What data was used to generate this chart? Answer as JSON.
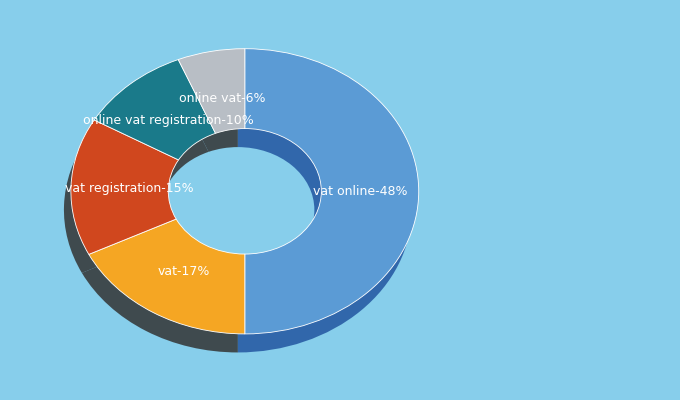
{
  "labels": [
    "vat online",
    "vat",
    "vat registration",
    "online vat registration",
    "online vat"
  ],
  "values": [
    48,
    17,
    15,
    10,
    6
  ],
  "percentages": [
    "48%",
    "17%",
    "15%",
    "10%",
    "6%"
  ],
  "colors": [
    "#5B9BD5",
    "#F5A623",
    "#D0471E",
    "#1A7A8A",
    "#B8BEC5"
  ],
  "background_color": "#87CEEB",
  "text_color": "#FFFFFF",
  "shadow_color": "#2255A0",
  "donut_width": 0.52,
  "label_fontsize": 9.0,
  "startangle": 90
}
